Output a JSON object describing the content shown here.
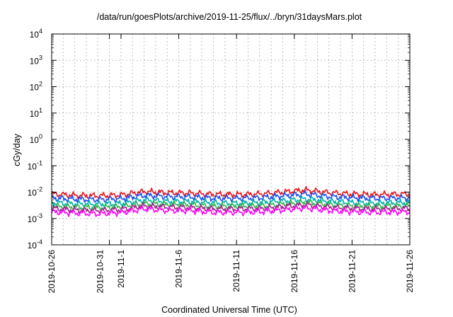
{
  "chart_data": {
    "type": "line",
    "title": "/data/run/goesPlots/archive/2019-11-25/flux/../bryn/31daysMars.plot",
    "xlabel": "Coordinated Universal Time (UTC)",
    "ylabel": "cGy/day",
    "yscale": "log",
    "ylim": [
      0.0001,
      10000
    ],
    "y_ticks": [
      {
        "value": 0.0001,
        "base": "10",
        "exp": "-4"
      },
      {
        "value": 0.001,
        "base": "10",
        "exp": "-3"
      },
      {
        "value": 0.01,
        "base": "10",
        "exp": "-2"
      },
      {
        "value": 0.1,
        "base": "10",
        "exp": "-1"
      },
      {
        "value": 1,
        "base": "10",
        "exp": "0"
      },
      {
        "value": 10,
        "base": "10",
        "exp": "1"
      },
      {
        "value": 100,
        "base": "10",
        "exp": "2"
      },
      {
        "value": 1000,
        "base": "10",
        "exp": "3"
      },
      {
        "value": 10000,
        "base": "10",
        "exp": "4"
      }
    ],
    "xlim": [
      "2019-10-26",
      "2019-11-26"
    ],
    "x_ticks": [
      {
        "date": "2019-10-26",
        "label": "2019-10-26"
      },
      {
        "date": "2019-10-31",
        "label": "2019-10-31"
      },
      {
        "date": "2019-11-01",
        "label": "2019-11-1"
      },
      {
        "date": "2019-11-06",
        "label": "2019-11-6"
      },
      {
        "date": "2019-11-11",
        "label": "2019-11-11"
      },
      {
        "date": "2019-11-16",
        "label": "2019-11-16"
      },
      {
        "date": "2019-11-21",
        "label": "2019-11-21"
      },
      {
        "date": "2019-11-26",
        "label": "2019-11-26"
      }
    ],
    "grid": true,
    "series": [
      {
        "color": "#e8141c",
        "x": [
          "2019-10-26",
          "2019-10-28",
          "2019-10-30",
          "2019-11-01",
          "2019-11-03",
          "2019-11-05",
          "2019-11-07",
          "2019-11-09",
          "2019-11-11",
          "2019-11-13",
          "2019-11-15",
          "2019-11-17",
          "2019-11-19",
          "2019-11-21",
          "2019-11-23",
          "2019-11-26"
        ],
        "values": [
          0.0085,
          0.0075,
          0.0072,
          0.0078,
          0.0105,
          0.0095,
          0.0092,
          0.0082,
          0.008,
          0.0085,
          0.01,
          0.012,
          0.0095,
          0.0085,
          0.008,
          0.0085
        ]
      },
      {
        "color": "#1a4ff0",
        "x": [
          "2019-10-26",
          "2019-10-28",
          "2019-10-30",
          "2019-11-01",
          "2019-11-03",
          "2019-11-05",
          "2019-11-07",
          "2019-11-09",
          "2019-11-11",
          "2019-11-13",
          "2019-11-15",
          "2019-11-17",
          "2019-11-19",
          "2019-11-21",
          "2019-11-23",
          "2019-11-26"
        ],
        "values": [
          0.006,
          0.0054,
          0.0052,
          0.0056,
          0.0075,
          0.0068,
          0.0066,
          0.0059,
          0.0058,
          0.0061,
          0.0072,
          0.0085,
          0.0068,
          0.0061,
          0.0058,
          0.0061
        ]
      },
      {
        "color": "#00b0b0",
        "x": [
          "2019-10-26",
          "2019-10-28",
          "2019-10-30",
          "2019-11-01",
          "2019-11-03",
          "2019-11-05",
          "2019-11-07",
          "2019-11-09",
          "2019-11-11",
          "2019-11-13",
          "2019-11-15",
          "2019-11-17",
          "2019-11-19",
          "2019-11-21",
          "2019-11-23",
          "2019-11-26"
        ],
        "values": [
          0.004,
          0.0036,
          0.0035,
          0.0037,
          0.005,
          0.0045,
          0.0044,
          0.0039,
          0.0038,
          0.004,
          0.0047,
          0.0055,
          0.0045,
          0.004,
          0.0038,
          0.004
        ]
      },
      {
        "color": "#2db84a",
        "x": [
          "2019-10-26",
          "2019-10-28",
          "2019-10-30",
          "2019-11-01",
          "2019-11-03",
          "2019-11-05",
          "2019-11-07",
          "2019-11-09",
          "2019-11-11",
          "2019-11-13",
          "2019-11-15",
          "2019-11-17",
          "2019-11-19",
          "2019-11-21",
          "2019-11-23",
          "2019-11-26"
        ],
        "values": [
          0.003,
          0.0027,
          0.0026,
          0.0028,
          0.0037,
          0.0034,
          0.0033,
          0.0029,
          0.0029,
          0.003,
          0.0035,
          0.0041,
          0.0034,
          0.003,
          0.0029,
          0.003
        ]
      },
      {
        "color": "#a0208a",
        "x": [
          "2019-10-26",
          "2019-10-28",
          "2019-10-30",
          "2019-11-01",
          "2019-11-03",
          "2019-11-05",
          "2019-11-07",
          "2019-11-09",
          "2019-11-11",
          "2019-11-13",
          "2019-11-15",
          "2019-11-17",
          "2019-11-19",
          "2019-11-21",
          "2019-11-23",
          "2019-11-26"
        ],
        "values": [
          0.0024,
          0.0021,
          0.002,
          0.0022,
          0.003,
          0.0027,
          0.0026,
          0.0023,
          0.0023,
          0.0024,
          0.0028,
          0.0033,
          0.0027,
          0.0024,
          0.0023,
          0.0024
        ]
      },
      {
        "color": "#ff00ff",
        "x": [
          "2019-10-26",
          "2019-10-28",
          "2019-10-30",
          "2019-11-01",
          "2019-11-03",
          "2019-11-05",
          "2019-11-07",
          "2019-11-09",
          "2019-11-11",
          "2019-11-13",
          "2019-11-15",
          "2019-11-17",
          "2019-11-19",
          "2019-11-21",
          "2019-11-23",
          "2019-11-26"
        ],
        "values": [
          0.0018,
          0.0016,
          0.0015,
          0.0017,
          0.0023,
          0.002,
          0.002,
          0.0017,
          0.0017,
          0.0018,
          0.0021,
          0.0025,
          0.002,
          0.0018,
          0.0017,
          0.0018
        ]
      }
    ]
  }
}
